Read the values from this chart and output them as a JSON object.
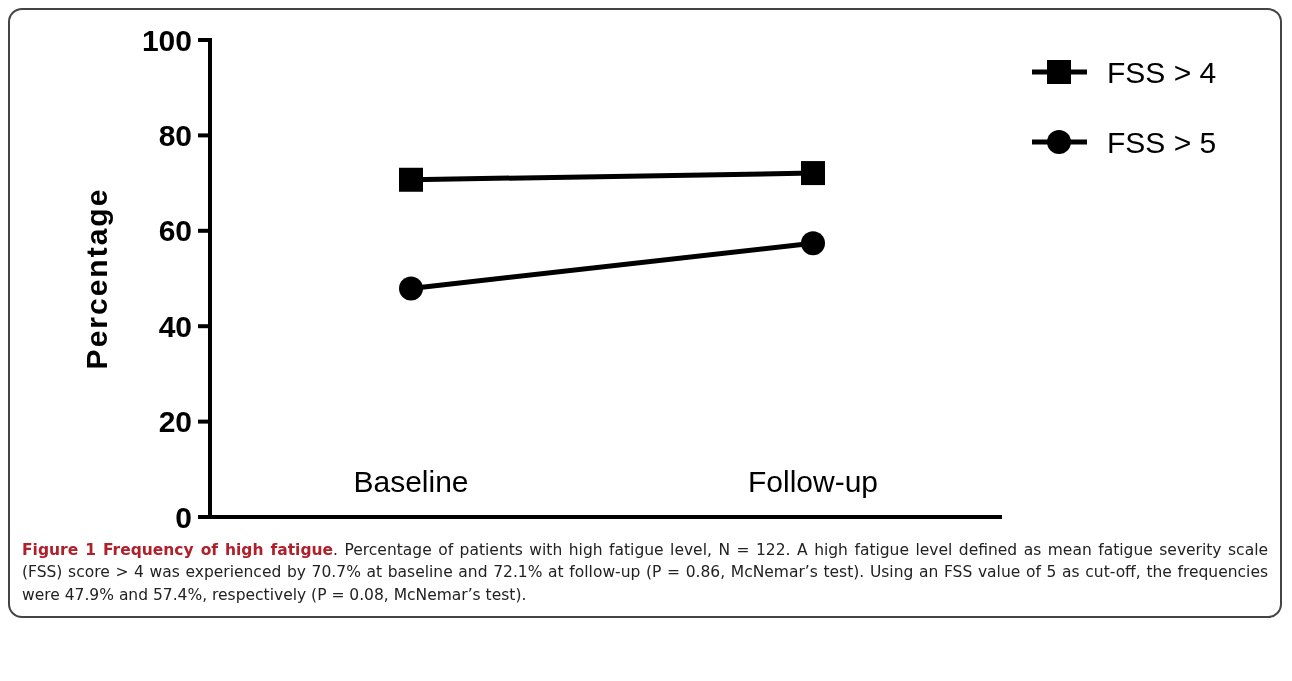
{
  "chart_data": {
    "type": "line",
    "title": "Figure 1 Frequency of high fatigue",
    "ylabel": "Percentage",
    "categories": [
      "Baseline",
      "Follow-up"
    ],
    "series": [
      {
        "name": "FSS > 4",
        "color": "#000000",
        "values": [
          70.7,
          72.1
        ],
        "marker": "square"
      },
      {
        "name": "FSS > 5",
        "color": "#000000",
        "values": [
          47.9,
          57.4
        ],
        "marker": "circle"
      }
    ],
    "ylim": [
      0,
      100
    ],
    "yticks": [
      0,
      20,
      40,
      60,
      80,
      100
    ],
    "grid": false,
    "legend": "top right",
    "line_style": "solid",
    "annotations": [
      ". Percentage of patients with high fatigue level, N = 122. A high fatigue level defined as mean fatigue severity scale (FSS) score > 4 was experienced by 70.7% at baseline and 72.1% at follow-up (P = 0.86, McNemar’s test). Using an FSS value of 5 as cut-off, the frequencies were 47.9% and 57.4%, respectively (P = 0.08, McNemar’s test)."
    ]
  }
}
